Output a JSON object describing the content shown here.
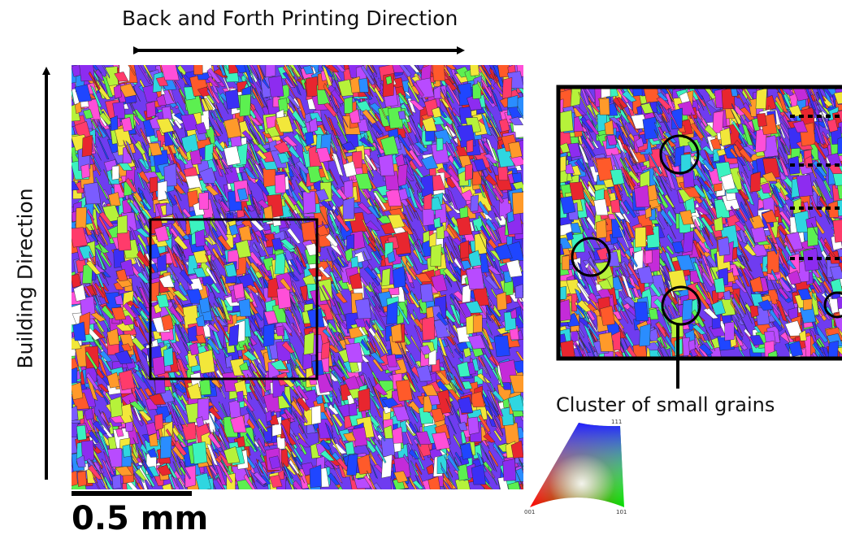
{
  "labels": {
    "printing_direction": "Back and Forth Printing Direction",
    "building_direction": "Building Direction",
    "scale_bar": "0.5 mm",
    "cluster_note": "Cluster of small grains"
  },
  "ipf_key": {
    "top": "111",
    "bottom_left": "001",
    "bottom_right": "101"
  },
  "colors": {
    "grain_palette": [
      "#e8262f",
      "#ff3b6b",
      "#c42bd9",
      "#8d2cf0",
      "#3b2ff5",
      "#1f46ff",
      "#2a8dff",
      "#2fd6e0",
      "#3bf2c0",
      "#5cf050",
      "#b6f23a",
      "#f2e73a",
      "#ff9a2a",
      "#ff5a2a",
      "#b84bff",
      "#ff4fd8",
      "#ffffff",
      "#7a5cff"
    ]
  }
}
